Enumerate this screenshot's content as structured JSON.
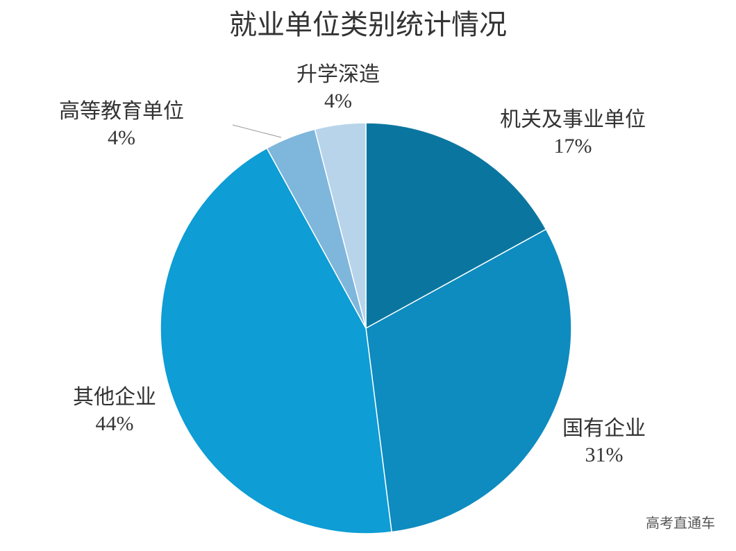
{
  "chart_data": {
    "type": "pie",
    "title": "就业单位类别统计情况",
    "categories": [
      "机关及事业单位",
      "国有企业",
      "其他企业",
      "高等教育单位",
      "升学深造"
    ],
    "values": [
      17,
      31,
      44,
      4,
      4
    ],
    "value_labels": [
      "17%",
      "31%",
      "44%",
      "4%",
      "4%"
    ],
    "colors": [
      "#0a76a0",
      "#0e8bbf",
      "#0e9dd4",
      "#7fb6dc",
      "#b7d4ea"
    ]
  },
  "watermark": "高考直通车"
}
